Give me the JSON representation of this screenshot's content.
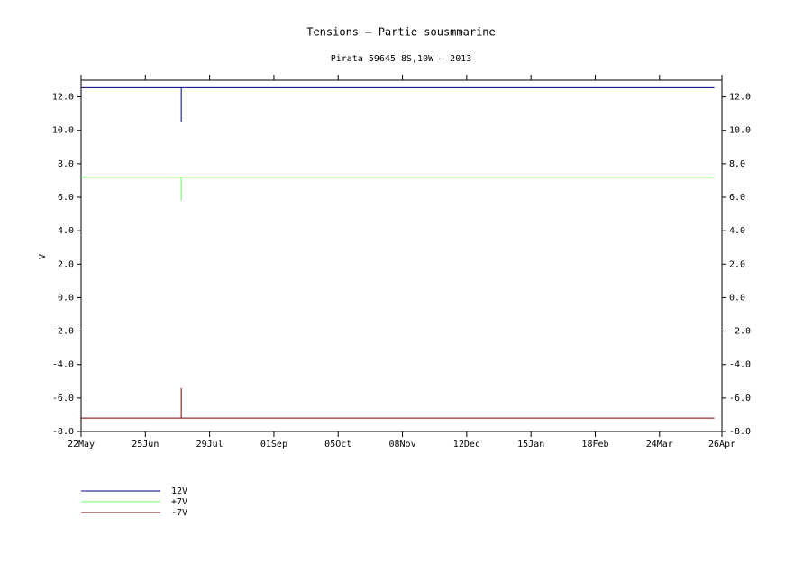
{
  "chart_data": {
    "type": "line",
    "title": "Tensions – Partie sousmmarine",
    "subtitle": "Pirata 59645 8S,10W – 2013",
    "y_label": "V",
    "x": [
      0,
      53,
      53,
      53,
      335
    ],
    "xlim": [
      0,
      339
    ],
    "xticks": [
      {
        "value": 0,
        "label": "22May"
      },
      {
        "value": 34,
        "label": "25Jun"
      },
      {
        "value": 68,
        "label": "29Jul"
      },
      {
        "value": 102,
        "label": "01Sep"
      },
      {
        "value": 136,
        "label": "05Oct"
      },
      {
        "value": 170,
        "label": "08Nov"
      },
      {
        "value": 204,
        "label": "12Dec"
      },
      {
        "value": 238,
        "label": "15Jan"
      },
      {
        "value": 272,
        "label": "18Feb"
      },
      {
        "value": 306,
        "label": "24Mar"
      },
      {
        "value": 339,
        "label": "26Apr"
      }
    ],
    "ylim": [
      -8,
      13
    ],
    "yticks": [
      {
        "value": -8,
        "label": "-8.0"
      },
      {
        "value": -6,
        "label": "-6.0"
      },
      {
        "value": -4,
        "label": "-4.0"
      },
      {
        "value": -2,
        "label": "-2.0"
      },
      {
        "value": 0,
        "label": "0.0"
      },
      {
        "value": 2,
        "label": "2.0"
      },
      {
        "value": 4,
        "label": "4.0"
      },
      {
        "value": 6,
        "label": "6.0"
      },
      {
        "value": 8,
        "label": "8.0"
      },
      {
        "value": 10,
        "label": "10.0"
      },
      {
        "value": 12,
        "label": "12.0"
      }
    ],
    "series": [
      {
        "name": "12V",
        "color": "#000080",
        "values": [
          12.55,
          12.55,
          10.5,
          12.55,
          12.55
        ]
      },
      {
        "name": "+7V",
        "color": "#66ff66",
        "values": [
          7.2,
          7.2,
          5.8,
          7.2,
          7.2
        ]
      },
      {
        "name": "-7V",
        "color": "#800000",
        "values": [
          -7.2,
          -7.2,
          -5.4,
          -7.2,
          -7.2
        ]
      }
    ]
  }
}
